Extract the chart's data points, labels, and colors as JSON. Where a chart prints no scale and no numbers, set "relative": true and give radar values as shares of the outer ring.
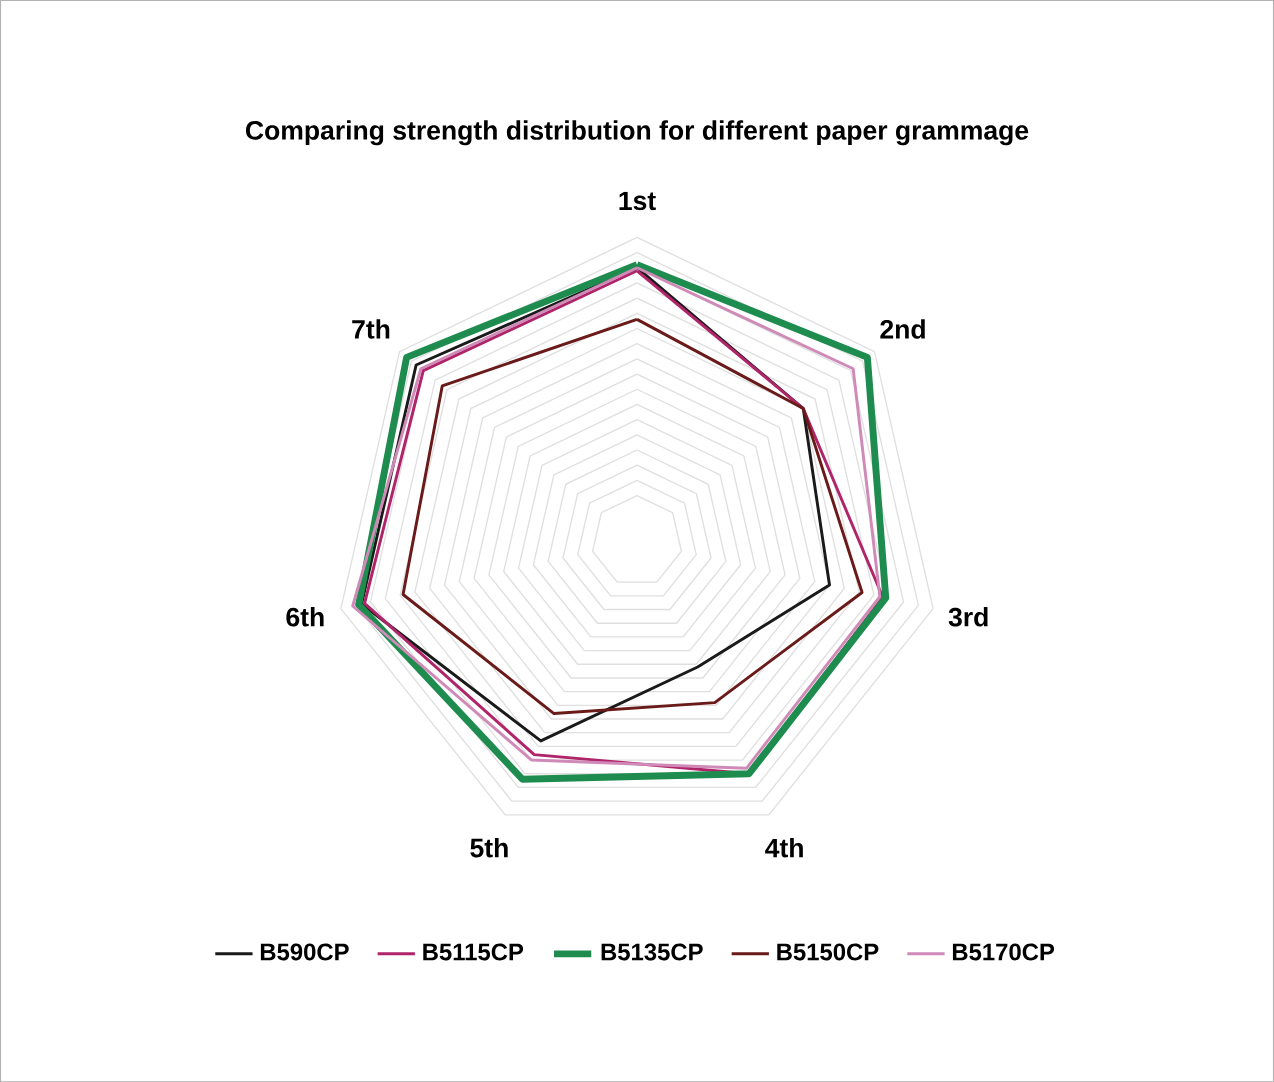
{
  "chart_data": {
    "type": "radar",
    "title": "Comparing strength distribution for different paper grammage",
    "categories": [
      "1st",
      "2nd",
      "3rd",
      "4th",
      "5th",
      "6th",
      "7th"
    ],
    "relative": true,
    "grid": true,
    "legend": "bottom",
    "marker": "none",
    "series": [
      {
        "name": "B590CP",
        "color": "#1a1a1a",
        "values": [
          0.9,
          0.7,
          0.65,
          0.46,
          0.73,
          0.93,
          0.93
        ]
      },
      {
        "name": "B5115CP",
        "color": "#b0246a",
        "values": [
          0.89,
          0.7,
          0.83,
          0.85,
          0.78,
          0.92,
          0.9
        ]
      },
      {
        "name": "B5135CP",
        "color": "#1e8c4e",
        "values": [
          0.91,
          0.97,
          0.84,
          0.85,
          0.87,
          0.94,
          0.97
        ]
      },
      {
        "name": "B5150CP",
        "color": "#6b1a1a",
        "values": [
          0.73,
          0.7,
          0.76,
          0.59,
          0.63,
          0.79,
          0.82
        ]
      },
      {
        "name": "B5170CP",
        "color": "#d08ab8",
        "values": [
          0.9,
          0.91,
          0.82,
          0.83,
          0.8,
          0.96,
          0.91
        ]
      }
    ]
  }
}
